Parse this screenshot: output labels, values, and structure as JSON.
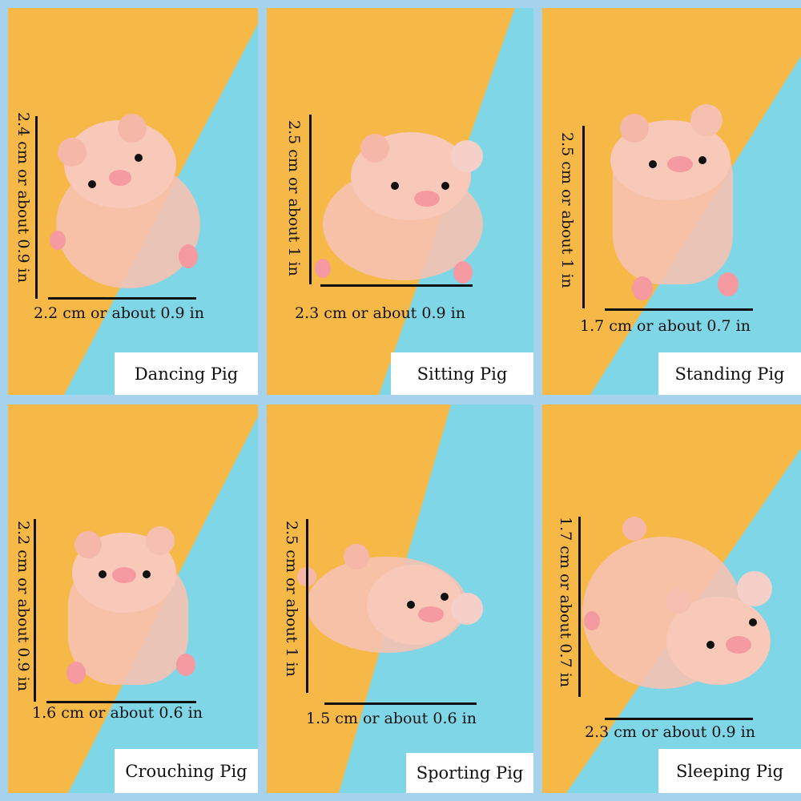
{
  "colors": {
    "frame": "#a6d2ee",
    "orange": "#f6b847",
    "cyan": "#7fd6e6",
    "pig": "#f7c2b2"
  },
  "pigs": [
    {
      "name": "Dancing Pig",
      "height": "2.4 cm or about 0.9 in",
      "width": "2.2 cm or about 0.9 in"
    },
    {
      "name": "Sitting Pig",
      "height": "2.5 cm or about 1 in",
      "width": "2.3 cm or about 0.9 in"
    },
    {
      "name": "Standing Pig",
      "height": "2.5 cm or about 1 in",
      "width": "1.7 cm or about 0.7 in"
    },
    {
      "name": "Crouching Pig",
      "height": "2.2 cm or about 0.9 in",
      "width": "1.6 cm or about 0.6 in"
    },
    {
      "name": "Sporting Pig",
      "height": "2.5 cm or about 1 in",
      "width": "1.5 cm or about 0.6 in"
    },
    {
      "name": "Sleeping Pig",
      "height": "1.7 cm or about 0.7 in",
      "width": "2.3 cm or about 0.9 in"
    }
  ]
}
